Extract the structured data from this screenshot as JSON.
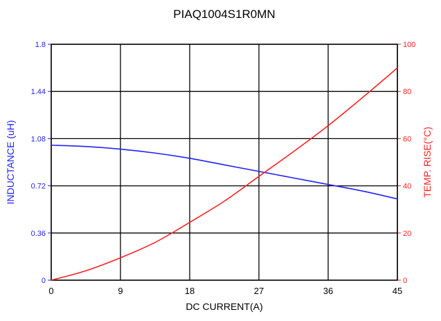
{
  "chart_data": {
    "type": "line",
    "title": "PIAQ1004S1R0MN",
    "xlabel": "DC CURRENT(A)",
    "xlim": [
      0,
      45
    ],
    "xticks": [
      0,
      9,
      18,
      27,
      36,
      45
    ],
    "grid": true,
    "y_left": {
      "label": "INDUCTANCE (uH)",
      "ylim": [
        0,
        1.8
      ],
      "ticks": [
        "0",
        "0.36",
        "0.72",
        "1.08",
        "1.44",
        "1.8"
      ],
      "color": "#1f1fff"
    },
    "y_right": {
      "label": "TEMP. RISE(°C)",
      "ylim": [
        0,
        100
      ],
      "ticks": [
        "0",
        "20",
        "40",
        "60",
        "80",
        "100"
      ],
      "color": "#ff1f1f"
    },
    "series": [
      {
        "axis": "left",
        "color": "#1f1fff",
        "x": [
          0,
          4.5,
          9,
          13.5,
          18,
          22.5,
          27,
          31.5,
          36,
          40.5,
          45
        ],
        "y": [
          1.03,
          1.02,
          1.0,
          0.97,
          0.93,
          0.88,
          0.83,
          0.78,
          0.73,
          0.68,
          0.62
        ]
      },
      {
        "axis": "right",
        "color": "#ff1f1f",
        "x": [
          0,
          4.5,
          9,
          13.5,
          18,
          22.5,
          27,
          31.5,
          36,
          40.5,
          45
        ],
        "y": [
          0,
          4,
          9.5,
          16,
          24.5,
          33.5,
          44,
          54.5,
          65.5,
          77.5,
          90
        ]
      }
    ]
  }
}
